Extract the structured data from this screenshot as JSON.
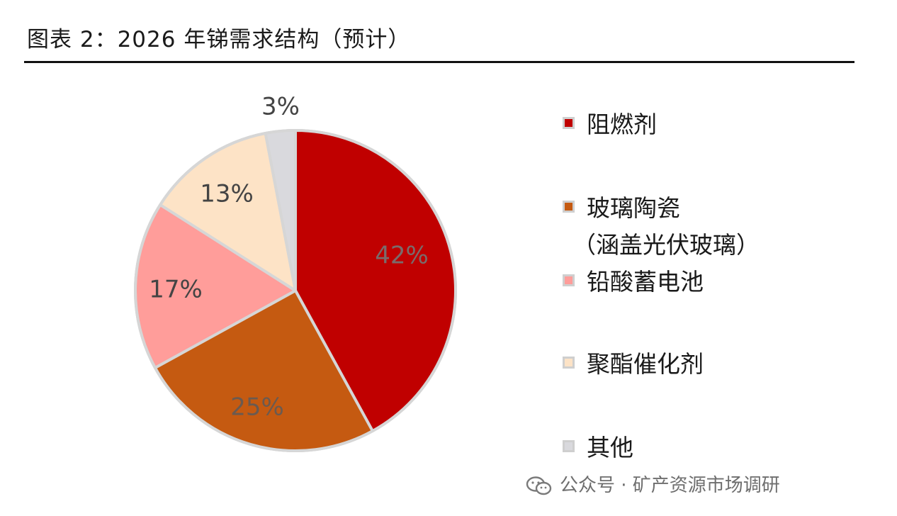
{
  "page": {
    "title": "图表 2：2026 年锑需求结构（预计）",
    "watermark": "公众号 · 矿产资源市场调研"
  },
  "chart_data": {
    "type": "pie",
    "title": "图表 2：2026 年锑需求结构（预计）",
    "slices": [
      {
        "label": "阻燃剂",
        "label_sub": "",
        "value": 42,
        "value_label": "42%",
        "color": "#c00000",
        "text_color": "#7a6b6b"
      },
      {
        "label": "玻璃陶瓷",
        "label_sub": "（涵盖光伏玻璃）",
        "value": 25,
        "value_label": "25%",
        "color": "#c55a11",
        "text_color": "#6b5a50"
      },
      {
        "label": "铅酸蓄电池",
        "label_sub": "",
        "value": 17,
        "value_label": "17%",
        "color": "#ff9d9a",
        "text_color": "#444444"
      },
      {
        "label": "聚酯催化剂",
        "label_sub": "",
        "value": 13,
        "value_label": "13%",
        "color": "#fde3c6",
        "text_color": "#444444"
      },
      {
        "label": "其他",
        "label_sub": "",
        "value": 3,
        "value_label": "3%",
        "color": "#d9d9dd",
        "text_color": "#444444"
      }
    ],
    "start_angle_deg": 0,
    "direction": "clockwise",
    "legend_position": "right"
  }
}
